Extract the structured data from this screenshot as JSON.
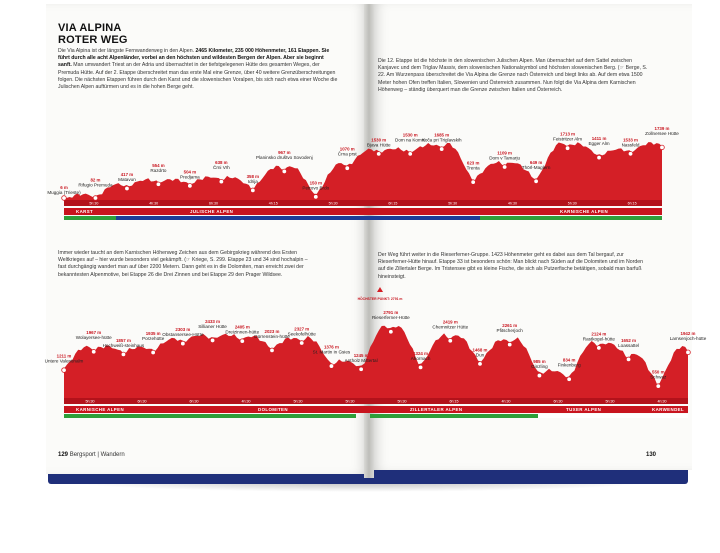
{
  "left": {
    "title_line1": "VIA ALPINA",
    "title_line2": "ROTER WEG",
    "intro_pre": "Die Via Alpina ist der längste Fernwanderweg in den Alpen. ",
    "intro_bold": "2465 Kilometer, 235 000 Höhenmeter, 161 Etappen. Sie führt durch alle acht Alpenländer, vorbei an den höchsten und wildesten Bergen der Alpen. Aber sie beginnt sanft.",
    "intro_rest": " Man umwandert Triest an der Adria und übernachtet in der tiefstgelegenen Hütte des gesamten Weges, der Premuda Hütte. Auf der 2. Etappe überschreitet man das erste Mal eine Grenze, über 40 weitere Grenzüberschreitungen folgen. Die nächsten Etappen führen durch den Karst und die slowenischen Voralpen, bis sich nach etwa einer Woche die Julischen Alpen auftürmen und es in die hohen Berge geht.",
    "middle_text": "Immer wieder taucht an dem Karnischen Höhenweg Zeichen aus dem Gebirgskrieg während des Ersten Weltkrieges auf – hier wurde besonders viel gekämpft. (☞ Kriege, S. 299. Etappe 23 und 34 sind hochalpin – fast durchgängig wandert man auf über 2200 Metern. Dann geht es in die Dolomiten, man erreicht zwei der bekanntesten Alpenmotive, bei Etappe 26 die Drei Zinnen und bei Etappe 29 den Prager Wildsee.",
    "footer_page": "129",
    "footer_text": "Bergsport | Wandern"
  },
  "right": {
    "top_text": "Die 12. Etappe ist die höchste in den slowenischen Julischen Alpen. Man übernachtet auf dem Sattel zwischen Kanjavec und dem Triglav Massiv, dem slowenischen Nationalsymbol und höchsten slowenischen Berg. (☞ Berge, S. 22. Am Wurzenpass überschreitet die Via Alpina die Grenze nach Österreich und biegt links ab. Auf dem etwa 1500 Meter hohen Ofen treffen Italien, Slowenien und Österreich zusammen. Nun folgt die Via Alpina dem Karnischen Höhenweg – ständig überquert man die Grenze zwischen Italien und Österreich.",
    "middle_text": "Der Weg führt weiter in die Rieserferner-Gruppe. 1423 Höhenmeter geht es dabei aus dem Tal bergauf, zur Rieserferner-Hütte hinauf. Etappe 33 ist besonders schön: Man blickt nach Süden auf die Dolomiten und im Norden auf die Zillertaler Berge. Im Tristensee gibt es kleine Fische, die sich als Putzerfische betätigen, sobald man barfuß hineinsteigt.",
    "footer_page": "130"
  },
  "profile_top": {
    "regions": [
      "KARST",
      "JULISCHE ALPEN",
      "KARNISCHE ALPEN"
    ],
    "stations": [
      {
        "elev": "6 m",
        "name": "Muggia (Trieste)"
      },
      {
        "elev": "82 m",
        "name": "Rifugio Premuda"
      },
      {
        "elev": "417 m",
        "name": "Matavun"
      },
      {
        "elev": "554 m",
        "name": "Razdrto"
      },
      {
        "elev": "504 m",
        "name": "Predjama"
      },
      {
        "elev": "638 m",
        "name": "Črni Vrh"
      },
      {
        "elev": "358 m",
        "name": "Idrija"
      },
      {
        "elev": "967 m",
        "name": "Planinsko društvo Sovodenj"
      },
      {
        "elev": "150 m",
        "name": "Petrovo Brdo"
      },
      {
        "elev": "1070 m",
        "name": "Črna prst"
      },
      {
        "elev": "1530 m",
        "name": "Bjava Hütte"
      },
      {
        "elev": "1530 m",
        "name": "Dom na Komni"
      },
      {
        "elev": "1685 m",
        "name": "Koča pri Triglavskih"
      },
      {
        "elev": "623 m",
        "name": "Trenta"
      },
      {
        "elev": "1109 m",
        "name": "Dom v Tamarju"
      },
      {
        "elev": "649 m",
        "name": "Thörl-Maglern"
      },
      {
        "elev": "1713 m",
        "name": "Feistritzer Alm"
      },
      {
        "elev": "1411 m",
        "name": "Egger Alm"
      },
      {
        "elev": "1533 m",
        "name": "Nassfeld"
      },
      {
        "elev": "1739 m",
        "name": "Zollnersee Hütte"
      }
    ],
    "times": [
      "5h:30",
      "4h:30",
      "6h:30",
      "4h:15",
      "5h:30",
      "6h:15",
      "5h:30",
      "4h:30",
      "5h:30",
      "6h:15"
    ]
  },
  "profile_bottom": {
    "regions": [
      "KARNISCHE ALPEN",
      "DOLOMITEN",
      "ZILLERTALER ALPEN",
      "TUXER ALPEN",
      "KARWENDEL"
    ],
    "stations": [
      {
        "elev": "1211 m",
        "name": "Untere Valentinalm"
      },
      {
        "elev": "1967 m",
        "name": "Wolayersee-hütte"
      },
      {
        "elev": "1857 m",
        "name": "Hochweiß-steinhaus"
      },
      {
        "elev": "1935 m",
        "name": "Porzehütte"
      },
      {
        "elev": "2303 m",
        "name": "Obstansersee-Hütte"
      },
      {
        "elev": "2433 m",
        "name": "Sillianer Hütte"
      },
      {
        "elev": "2405 m",
        "name": "Dreizinnen-hütte"
      },
      {
        "elev": "2023 m",
        "name": "Dürrenstein-hütte"
      },
      {
        "elev": "2327 m",
        "name": "Seekofelhütte"
      },
      {
        "elev": "1376 m",
        "name": "St. Martin in Gsies"
      },
      {
        "elev": "1245 m",
        "name": "Antholz Mittertal"
      },
      {
        "elev": "2791 m",
        "name": "Rieserferner-Hütte"
      },
      {
        "elev": "1324 m",
        "name": "Ahornach"
      },
      {
        "elev": "2419 m",
        "name": "Chemnitzer Hütte"
      },
      {
        "elev": "1468 m",
        "name": "Dun"
      },
      {
        "elev": "2261 m",
        "name": "Pfitscherjoch"
      },
      {
        "elev": "985 m",
        "name": "Ginzling"
      },
      {
        "elev": "834 m",
        "name": "Finkenberg"
      },
      {
        "elev": "2124 m",
        "name": "Rastkogel-hütte"
      },
      {
        "elev": "1652 m",
        "name": "Loassattel"
      },
      {
        "elev": "550 m",
        "name": "Schwaz"
      },
      {
        "elev": "1942 m",
        "name": "Lamsenjoch-hütte"
      }
    ],
    "highest_marker": "HÖCHSTER PUNKT: 2791 m",
    "times": [
      "5h:30",
      "6h:30",
      "6h:30",
      "4h:30",
      "5h:30",
      "5h:30",
      "5h:30",
      "6h:15",
      "4h:30",
      "6h:30",
      "5h:30",
      "4h:30"
    ]
  },
  "colors": {
    "profile": "#d41f26",
    "band": "#c8141e",
    "green": "#2e9e3a",
    "blue": "#1e3d96",
    "cover": "#1f2f7a"
  }
}
